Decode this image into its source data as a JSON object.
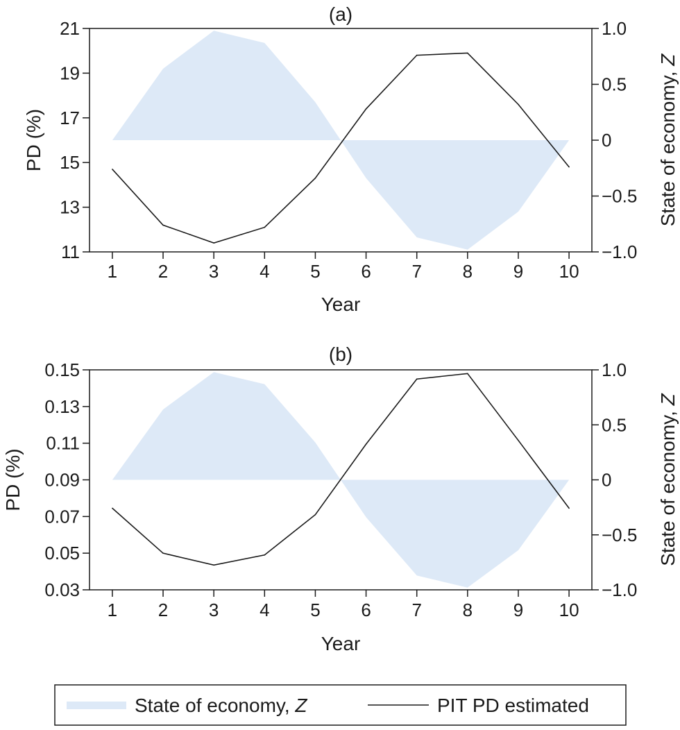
{
  "chart_data": [
    {
      "type": "line",
      "title": "(a)",
      "xlabel": "Year",
      "ylabel": "PD (%)",
      "y2label_prefix": "State of economy, ",
      "y2label_var": "Z",
      "x": [
        1,
        2,
        3,
        4,
        5,
        6,
        7,
        8,
        9,
        10
      ],
      "xlim": [
        0.55,
        10.45
      ],
      "ylim": [
        11,
        21
      ],
      "y2lim": [
        -1.0,
        1.0
      ],
      "yticks": [
        "11",
        "13",
        "15",
        "17",
        "19",
        "21"
      ],
      "yticks_values": [
        11,
        13,
        15,
        17,
        19,
        21
      ],
      "y2ticks": [
        "−1.0",
        "−0.5",
        "0",
        "0.5",
        "1.0"
      ],
      "y2ticks_values": [
        -1.0,
        -0.5,
        0,
        0.5,
        1.0
      ],
      "xticks": [
        "1",
        "2",
        "3",
        "4",
        "5",
        "6",
        "7",
        "8",
        "9",
        "10"
      ],
      "series": [
        {
          "name": "State of economy, Z",
          "axis": "right",
          "kind": "area",
          "values": [
            0,
            0.64,
            0.98,
            0.87,
            0.34,
            -0.34,
            -0.87,
            -0.98,
            -0.64,
            0
          ]
        },
        {
          "name": "PIT PD estimated",
          "axis": "left",
          "kind": "line",
          "values": [
            14.7,
            12.2,
            11.4,
            12.1,
            14.3,
            17.4,
            19.8,
            19.9,
            17.6,
            14.8
          ]
        }
      ]
    },
    {
      "type": "line",
      "title": "(b)",
      "xlabel": "Year",
      "ylabel": "PD (%)",
      "y2label_prefix": "State of economy, ",
      "y2label_var": "Z",
      "x": [
        1,
        2,
        3,
        4,
        5,
        6,
        7,
        8,
        9,
        10
      ],
      "xlim": [
        0.55,
        10.45
      ],
      "ylim": [
        0.03,
        0.15
      ],
      "y2lim": [
        -1.0,
        1.0
      ],
      "yticks": [
        "0.03",
        "0.05",
        "0.07",
        "0.09",
        "0.11",
        "0.13",
        "0.15"
      ],
      "yticks_values": [
        0.03,
        0.05,
        0.07,
        0.09,
        0.11,
        0.13,
        0.15
      ],
      "y2ticks": [
        "−1.0",
        "−0.5",
        "0",
        "0.5",
        "1.0"
      ],
      "y2ticks_values": [
        -1.0,
        -0.5,
        0,
        0.5,
        1.0
      ],
      "xticks": [
        "1",
        "2",
        "3",
        "4",
        "5",
        "6",
        "7",
        "8",
        "9",
        "10"
      ],
      "series": [
        {
          "name": "State of economy, Z",
          "axis": "right",
          "kind": "area",
          "values": [
            0,
            0.64,
            0.98,
            0.87,
            0.34,
            -0.34,
            -0.87,
            -0.98,
            -0.64,
            0
          ]
        },
        {
          "name": "PIT PD estimated",
          "axis": "left",
          "kind": "line",
          "values": [
            0.0745,
            0.05,
            0.0435,
            0.049,
            0.071,
            0.1095,
            0.145,
            0.148,
            0.1115,
            0.0745
          ]
        }
      ]
    }
  ],
  "legend": {
    "z_label_prefix": "State of economy, ",
    "z_label_var": "Z",
    "pd_label": "PIT PD estimated"
  }
}
